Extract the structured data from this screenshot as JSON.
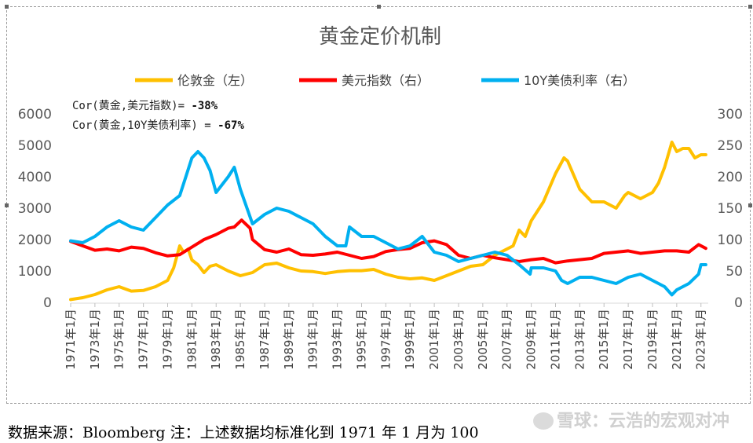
{
  "chart_data": {
    "type": "line",
    "title": "黄金定价机制",
    "legend": {
      "placement": "top",
      "entries": [
        {
          "name": "伦敦金（左）",
          "color": "#FFC000"
        },
        {
          "name": "美元指数（右）",
          "color": "#FF0000"
        },
        {
          "name": "10Y美债利率（右）",
          "color": "#00B0F0"
        }
      ]
    },
    "annotations": {
      "line1_prefix": "Cor(黄金,美元指数)= ",
      "line1_value": "-38%",
      "line2_prefix": "Cor(黄金,10Y美债利率) = ",
      "line2_value": "-67%"
    },
    "y_left": {
      "ticks": [
        "0",
        "1000",
        "2000",
        "3000",
        "4000",
        "5000",
        "6000"
      ],
      "ylim": [
        0,
        6000
      ]
    },
    "y_right": {
      "ticks": [
        "0",
        "50",
        "100",
        "150",
        "200",
        "250",
        "300"
      ],
      "ylim": [
        0,
        300
      ]
    },
    "x_ticks": [
      "1971年1月",
      "1973年1月",
      "1975年1月",
      "1977年1月",
      "1979年1月",
      "1981年1月",
      "1983年1月",
      "1985年1月",
      "1987年1月",
      "1989年1月",
      "1991年1月",
      "1993年1月",
      "1995年1月",
      "1997年1月",
      "1999年1月",
      "2001年1月",
      "2003年1月",
      "2005年1月",
      "2007年1月",
      "2009年1月",
      "2011年1月",
      "2013年1月",
      "2015年1月",
      "2017年1月",
      "2019年1月",
      "2021年1月",
      "2023年1月"
    ],
    "xlim": [
      1971.0,
      2023.6
    ],
    "series": [
      {
        "name": "伦敦金（左）",
        "axis": "left",
        "color": "#FFC000",
        "x": [
          1971,
          1972,
          1973,
          1974,
          1975,
          1976,
          1977,
          1978,
          1979,
          1979.5,
          1980.0,
          1980.3,
          1980.7,
          1981,
          1981.5,
          1982,
          1982.5,
          1983,
          1984,
          1985,
          1986,
          1987,
          1988,
          1989,
          1990,
          1991,
          1992,
          1993,
          1994,
          1995,
          1996,
          1997,
          1998,
          1999,
          2000,
          2001,
          2002,
          2003,
          2004,
          2005,
          2006,
          2007,
          2007.5,
          2008,
          2008.5,
          2009,
          2010,
          2011,
          2011.7,
          2012,
          2013,
          2013.5,
          2014,
          2015,
          2016,
          2016.7,
          2017,
          2018,
          2019,
          2019.5,
          2020,
          2020.6,
          2021,
          2021.5,
          2022,
          2022.5,
          2023,
          2023.4
        ],
        "y": [
          90,
          150,
          250,
          400,
          500,
          360,
          380,
          500,
          700,
          1100,
          1800,
          1600,
          1700,
          1350,
          1200,
          950,
          1150,
          1200,
          1000,
          850,
          950,
          1200,
          1250,
          1100,
          1000,
          980,
          920,
          980,
          1010,
          1010,
          1050,
          900,
          800,
          750,
          780,
          700,
          850,
          1000,
          1150,
          1200,
          1500,
          1700,
          1800,
          2300,
          2100,
          2600,
          3200,
          4100,
          4600,
          4500,
          3600,
          3400,
          3200,
          3200,
          3000,
          3400,
          3500,
          3300,
          3500,
          3800,
          4300,
          5100,
          4800,
          4900,
          4900,
          4600,
          4700,
          4700
        ]
      },
      {
        "name": "美元指数（右）",
        "axis": "right",
        "color": "#FF0000",
        "x": [
          1971,
          1972,
          1973,
          1974,
          1975,
          1976,
          1977,
          1978,
          1979,
          1980,
          1981,
          1982,
          1983,
          1984,
          1984.5,
          1985.1,
          1985.8,
          1986,
          1987,
          1988,
          1989,
          1990,
          1991,
          1992,
          1993,
          1994,
          1995,
          1996,
          1997,
          1998,
          1999,
          2000,
          2001,
          2002,
          2003,
          2004,
          2005,
          2006,
          2007,
          2008,
          2009,
          2010,
          2011,
          2012,
          2013,
          2014,
          2015,
          2016,
          2017,
          2018,
          2019,
          2020,
          2021,
          2022,
          2022.8,
          2023.4
        ],
        "y": [
          97,
          90,
          83,
          85,
          82,
          88,
          86,
          79,
          74,
          76,
          88,
          100,
          108,
          118,
          120,
          131,
          118,
          100,
          84,
          80,
          85,
          76,
          75,
          77,
          80,
          75,
          70,
          73,
          81,
          84,
          86,
          95,
          98,
          92,
          75,
          70,
          75,
          71,
          68,
          65,
          68,
          70,
          63,
          66,
          68,
          70,
          78,
          80,
          82,
          78,
          80,
          82,
          82,
          80,
          92,
          86
        ]
      },
      {
        "name": "10Y美债利率（右）",
        "axis": "right",
        "color": "#00B0F0",
        "x": [
          1971,
          1972,
          1973,
          1974,
          1975,
          1976,
          1977,
          1978,
          1979,
          1980,
          1980.5,
          1981,
          1981.5,
          1982,
          1982.5,
          1983,
          1984,
          1984.5,
          1985,
          1986,
          1987,
          1988,
          1989,
          1990,
          1991,
          1992,
          1993,
          1993.7,
          1994,
          1995,
          1996,
          1997,
          1998,
          1999,
          2000,
          2001,
          2002,
          2003,
          2004,
          2005,
          2006,
          2007,
          2008,
          2008.9,
          2009,
          2010,
          2011,
          2011.5,
          2012,
          2013,
          2014,
          2015,
          2016,
          2017,
          2018,
          2019,
          2020,
          2020.6,
          2021,
          2022,
          2022.8,
          2023,
          2023.4
        ],
        "y": [
          98,
          95,
          105,
          120,
          130,
          120,
          115,
          135,
          155,
          170,
          200,
          230,
          240,
          230,
          210,
          175,
          200,
          215,
          180,
          125,
          140,
          150,
          145,
          135,
          125,
          105,
          90,
          90,
          120,
          105,
          105,
          95,
          85,
          90,
          105,
          80,
          75,
          65,
          70,
          75,
          80,
          75,
          60,
          45,
          55,
          55,
          50,
          35,
          30,
          40,
          40,
          35,
          30,
          40,
          45,
          35,
          25,
          12,
          20,
          30,
          45,
          60,
          60
        ]
      }
    ]
  },
  "footer": {
    "source_note": "数据来源：Bloomberg 注：上述数据均标准化到 1971 年 1 月为 100",
    "watermark": "雪球：云浩的宏观对冲"
  }
}
